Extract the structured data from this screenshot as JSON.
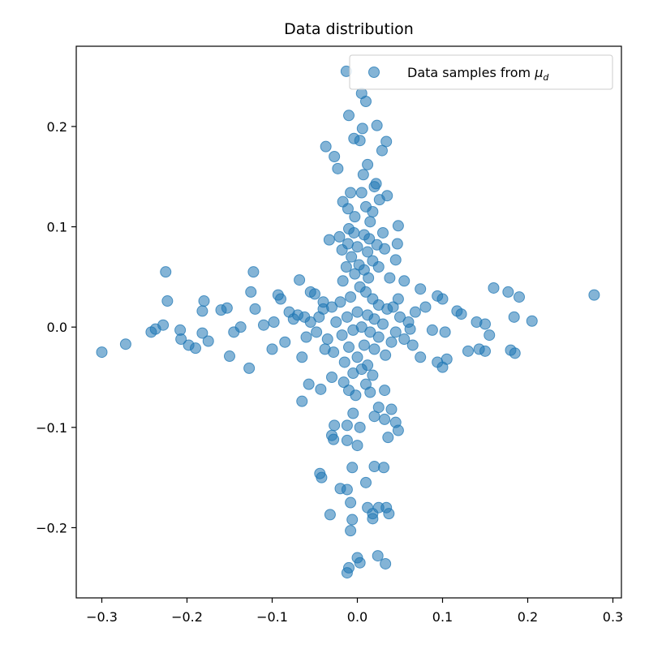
{
  "chart_data": {
    "type": "scatter",
    "title": "Data distribution",
    "xlabel": "",
    "ylabel": "",
    "xlim": [
      -0.33,
      0.31
    ],
    "ylim": [
      -0.27,
      0.28
    ],
    "grid": false,
    "legend_placement": "top-right",
    "x_ticks": [
      -0.3,
      -0.2,
      -0.1,
      0.0,
      0.1,
      0.2,
      0.3
    ],
    "x_tick_labels": [
      "−0.3",
      "−0.2",
      "−0.1",
      "0.0",
      "0.1",
      "0.2",
      "0.3"
    ],
    "y_ticks": [
      -0.2,
      -0.1,
      0.0,
      0.1,
      0.2
    ],
    "y_tick_labels": [
      "−0.2",
      "−0.1",
      "0.0",
      "0.1",
      "0.2"
    ],
    "series": [
      {
        "name": "Data samples from μ_d",
        "legend_label_prefix": "Data samples from ",
        "legend_label_symbol": "μ",
        "legend_label_subscript": "d",
        "color": "#1f77b4",
        "alpha": 0.55,
        "points": [
          [
            -0.013,
            0.255
          ],
          [
            0.005,
            0.233
          ],
          [
            0.01,
            0.225
          ],
          [
            -0.01,
            0.211
          ],
          [
            0.023,
            0.201
          ],
          [
            0.006,
            0.198
          ],
          [
            0.034,
            0.185
          ],
          [
            -0.004,
            0.188
          ],
          [
            0.003,
            0.186
          ],
          [
            -0.037,
            0.18
          ],
          [
            -0.027,
            0.17
          ],
          [
            0.029,
            0.176
          ],
          [
            0.012,
            0.162
          ],
          [
            -0.023,
            0.158
          ],
          [
            0.007,
            0.152
          ],
          [
            0.022,
            0.143
          ],
          [
            0.02,
            0.14
          ],
          [
            -0.008,
            0.134
          ],
          [
            0.005,
            0.134
          ],
          [
            0.035,
            0.131
          ],
          [
            0.026,
            0.127
          ],
          [
            -0.017,
            0.125
          ],
          [
            -0.011,
            0.118
          ],
          [
            0.01,
            0.12
          ],
          [
            0.018,
            0.115
          ],
          [
            -0.003,
            0.11
          ],
          [
            0.015,
            0.105
          ],
          [
            0.048,
            0.101
          ],
          [
            -0.01,
            0.098
          ],
          [
            -0.004,
            0.094
          ],
          [
            0.03,
            0.094
          ],
          [
            -0.021,
            0.09
          ],
          [
            0.008,
            0.092
          ],
          [
            -0.033,
            0.087
          ],
          [
            0.014,
            0.088
          ],
          [
            0.047,
            0.083
          ],
          [
            -0.011,
            0.083
          ],
          [
            0.023,
            0.082
          ],
          [
            0.0,
            0.08
          ],
          [
            -0.018,
            0.077
          ],
          [
            0.012,
            0.075
          ],
          [
            0.032,
            0.078
          ],
          [
            -0.007,
            0.07
          ],
          [
            0.045,
            0.067
          ],
          [
            0.018,
            0.066
          ],
          [
            -0.013,
            0.06
          ],
          [
            0.025,
            0.06
          ],
          [
            0.008,
            0.057
          ],
          [
            -0.003,
            0.053
          ],
          [
            0.013,
            0.049
          ],
          [
            0.038,
            0.049
          ],
          [
            -0.017,
            0.046
          ],
          [
            0.055,
            0.046
          ],
          [
            -0.068,
            0.047
          ],
          [
            -0.122,
            0.055
          ],
          [
            -0.225,
            0.055
          ],
          [
            0.16,
            0.039
          ],
          [
            0.177,
            0.035
          ],
          [
            0.19,
            0.03
          ],
          [
            0.278,
            0.032
          ],
          [
            -0.223,
            0.026
          ],
          [
            -0.18,
            0.026
          ],
          [
            -0.125,
            0.035
          ],
          [
            -0.093,
            0.032
          ],
          [
            -0.09,
            0.028
          ],
          [
            -0.05,
            0.033
          ],
          [
            -0.055,
            0.035
          ],
          [
            0.074,
            0.038
          ],
          [
            0.094,
            0.031
          ],
          [
            0.1,
            0.028
          ],
          [
            -0.182,
            0.016
          ],
          [
            -0.16,
            0.017
          ],
          [
            -0.153,
            0.019
          ],
          [
            -0.12,
            0.018
          ],
          [
            -0.08,
            0.015
          ],
          [
            -0.062,
            0.01
          ],
          [
            -0.04,
            0.018
          ],
          [
            0.08,
            0.02
          ],
          [
            0.117,
            0.016
          ],
          [
            0.122,
            0.013
          ],
          [
            0.184,
            0.01
          ],
          [
            0.205,
            0.006
          ],
          [
            -0.228,
            0.002
          ],
          [
            -0.237,
            -0.002
          ],
          [
            -0.242,
            -0.005
          ],
          [
            -0.208,
            -0.003
          ],
          [
            -0.182,
            -0.006
          ],
          [
            -0.145,
            -0.005
          ],
          [
            -0.137,
            0.0
          ],
          [
            -0.11,
            0.002
          ],
          [
            -0.098,
            0.005
          ],
          [
            -0.075,
            0.008
          ],
          [
            0.062,
            -0.002
          ],
          [
            0.088,
            -0.003
          ],
          [
            0.103,
            -0.005
          ],
          [
            0.14,
            0.005
          ],
          [
            0.15,
            0.003
          ],
          [
            0.155,
            -0.008
          ],
          [
            -0.207,
            -0.012
          ],
          [
            -0.198,
            -0.018
          ],
          [
            -0.19,
            -0.021
          ],
          [
            -0.175,
            -0.014
          ],
          [
            -0.15,
            -0.029
          ],
          [
            -0.127,
            -0.041
          ],
          [
            -0.1,
            -0.022
          ],
          [
            -0.065,
            -0.03
          ],
          [
            0.074,
            -0.03
          ],
          [
            0.094,
            -0.035
          ],
          [
            0.1,
            -0.04
          ],
          [
            0.105,
            -0.032
          ],
          [
            0.13,
            -0.024
          ],
          [
            0.143,
            -0.022
          ],
          [
            0.15,
            -0.024
          ],
          [
            0.18,
            -0.023
          ],
          [
            0.185,
            -0.026
          ],
          [
            -0.3,
            -0.025
          ],
          [
            -0.272,
            -0.017
          ],
          [
            -0.03,
            -0.05
          ],
          [
            -0.016,
            -0.055
          ],
          [
            0.01,
            -0.057
          ],
          [
            0.032,
            -0.063
          ],
          [
            -0.057,
            -0.057
          ],
          [
            -0.043,
            -0.062
          ],
          [
            -0.01,
            -0.063
          ],
          [
            0.015,
            -0.065
          ],
          [
            -0.065,
            -0.074
          ],
          [
            0.025,
            -0.08
          ],
          [
            0.04,
            -0.082
          ],
          [
            -0.005,
            -0.086
          ],
          [
            0.02,
            -0.089
          ],
          [
            0.032,
            -0.092
          ],
          [
            0.045,
            -0.095
          ],
          [
            -0.012,
            -0.098
          ],
          [
            -0.027,
            -0.098
          ],
          [
            0.003,
            -0.1
          ],
          [
            0.048,
            -0.103
          ],
          [
            -0.03,
            -0.108
          ],
          [
            -0.028,
            -0.112
          ],
          [
            0.036,
            -0.11
          ],
          [
            -0.012,
            -0.113
          ],
          [
            0.0,
            -0.118
          ],
          [
            -0.006,
            -0.14
          ],
          [
            -0.044,
            -0.146
          ],
          [
            -0.042,
            -0.15
          ],
          [
            0.02,
            -0.139
          ],
          [
            0.031,
            -0.14
          ],
          [
            0.01,
            -0.155
          ],
          [
            -0.02,
            -0.161
          ],
          [
            -0.012,
            -0.162
          ],
          [
            -0.008,
            -0.175
          ],
          [
            0.012,
            -0.18
          ],
          [
            0.018,
            -0.186
          ],
          [
            0.025,
            -0.18
          ],
          [
            0.034,
            -0.18
          ],
          [
            0.037,
            -0.186
          ],
          [
            -0.032,
            -0.187
          ],
          [
            -0.006,
            -0.192
          ],
          [
            0.018,
            -0.191
          ],
          [
            -0.008,
            -0.203
          ],
          [
            0.024,
            -0.228
          ],
          [
            0.0,
            -0.23
          ],
          [
            0.003,
            -0.235
          ],
          [
            0.033,
            -0.236
          ],
          [
            -0.01,
            -0.24
          ],
          [
            -0.012,
            -0.245
          ],
          [
            0.003,
            0.04
          ],
          [
            0.01,
            0.035
          ],
          [
            -0.008,
            0.03
          ],
          [
            0.018,
            0.028
          ],
          [
            -0.02,
            0.025
          ],
          [
            0.025,
            0.022
          ],
          [
            -0.03,
            0.02
          ],
          [
            0.035,
            0.018
          ],
          [
            0.0,
            0.015
          ],
          [
            0.012,
            0.012
          ],
          [
            -0.012,
            0.01
          ],
          [
            0.02,
            0.008
          ],
          [
            -0.025,
            0.005
          ],
          [
            0.03,
            0.003
          ],
          [
            0.005,
            0.0
          ],
          [
            -0.005,
            -0.003
          ],
          [
            0.015,
            -0.005
          ],
          [
            -0.018,
            -0.008
          ],
          [
            0.025,
            -0.01
          ],
          [
            -0.035,
            -0.012
          ],
          [
            0.04,
            -0.015
          ],
          [
            0.008,
            -0.018
          ],
          [
            -0.01,
            -0.02
          ],
          [
            0.02,
            -0.022
          ],
          [
            -0.028,
            -0.025
          ],
          [
            0.033,
            -0.028
          ],
          [
            0.0,
            -0.03
          ],
          [
            -0.015,
            -0.035
          ],
          [
            0.012,
            -0.038
          ],
          [
            0.005,
            -0.042
          ],
          [
            -0.005,
            -0.046
          ],
          [
            0.018,
            -0.048
          ],
          [
            -0.045,
            0.01
          ],
          [
            -0.055,
            0.005
          ],
          [
            0.05,
            0.01
          ],
          [
            0.06,
            0.005
          ],
          [
            -0.048,
            -0.005
          ],
          [
            0.045,
            -0.005
          ],
          [
            -0.06,
            -0.01
          ],
          [
            0.055,
            -0.012
          ],
          [
            -0.07,
            0.012
          ],
          [
            0.068,
            0.015
          ],
          [
            0.065,
            -0.018
          ],
          [
            -0.085,
            -0.015
          ],
          [
            -0.04,
            0.025
          ],
          [
            0.048,
            0.028
          ],
          [
            -0.038,
            -0.022
          ],
          [
            0.042,
            0.02
          ],
          [
            0.002,
            0.062
          ],
          [
            -0.002,
            -0.068
          ]
        ]
      }
    ]
  }
}
